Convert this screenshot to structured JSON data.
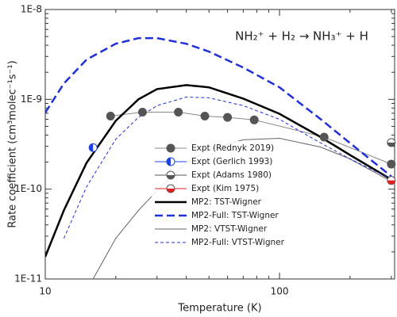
{
  "chart_data": {
    "type": "line",
    "annotation": "NH₂⁺ + H₂ → NH₃⁺ + H",
    "x_label": "Temperature (K)",
    "y_label": "Rate coefficient (cm³molec⁻¹s⁻¹)",
    "log_x": true,
    "log_y": true,
    "xlim": [
      10,
      310
    ],
    "xticks": [
      10,
      100
    ],
    "ylim": [
      1e-11,
      1e-08
    ],
    "yticks": [
      {
        "value": 1e-11,
        "label": "1E-11"
      },
      {
        "value": 1e-10,
        "label": "1E-10"
      },
      {
        "value": 1e-09,
        "label": "1E-9"
      },
      {
        "value": 1e-08,
        "label": "1E-8"
      }
    ],
    "series": [
      {
        "name": "Expt (Rednyk 2019)",
        "kind": "line-marker",
        "color": "#555555",
        "marker_fill": "full",
        "x": [
          19,
          26,
          37,
          48,
          60,
          78,
          155,
          300
        ],
        "values": [
          6.5e-10,
          7.2e-10,
          7.2e-10,
          6.5e-10,
          6.3e-10,
          5.9e-10,
          3.8e-10,
          1.9e-10
        ]
      },
      {
        "name": "Expt (Gerlich 1993)",
        "kind": "marker",
        "color": "#2040e0",
        "marker_fill": "left",
        "x": [
          16
        ],
        "values": [
          2.9e-10
        ]
      },
      {
        "name": "Expt (Adams 1980)",
        "kind": "marker",
        "color": "#555555",
        "marker_fill": "bottom",
        "x": [
          300
        ],
        "values": [
          3.3e-10
        ]
      },
      {
        "name": "Expt (Kim 1975)",
        "kind": "marker",
        "color": "#e02020",
        "marker_fill": "bottom",
        "x": [
          300
        ],
        "values": [
          1.25e-10
        ]
      },
      {
        "name": "MP2: TST-Wigner",
        "kind": "line",
        "color": "#000000",
        "width": 2.5,
        "dashed": false,
        "x": [
          10,
          12,
          15,
          20,
          25,
          30,
          40,
          50,
          70,
          100,
          150,
          200,
          300
        ],
        "values": [
          1.77e-11,
          5.8e-11,
          1.96e-10,
          5.77e-10,
          1e-09,
          1.3e-09,
          1.44e-09,
          1.36e-09,
          1.02e-09,
          6.9e-10,
          3.8e-10,
          2.4e-10,
          1.28e-10
        ]
      },
      {
        "name": "MP2-Full: TST-Wigner",
        "kind": "line",
        "color": "#2030d8",
        "width": 2.5,
        "dashed": true,
        "x": [
          10,
          12,
          15,
          20,
          25,
          30,
          40,
          50,
          70,
          100,
          150,
          200,
          300
        ],
        "values": [
          7.1e-10,
          1.5e-09,
          2.77e-09,
          4.16e-09,
          4.8e-09,
          4.8e-09,
          4.16e-09,
          3.4e-09,
          2.26e-09,
          1.36e-09,
          6e-10,
          3.26e-10,
          1.39e-10
        ]
      },
      {
        "name": "MP2: VTST-Wigner",
        "kind": "line",
        "color": "#666666",
        "width": 1,
        "dashed": false,
        "x": [
          16,
          20,
          25,
          30,
          40,
          50,
          70,
          100,
          150,
          200,
          300
        ],
        "values": [
          1e-11,
          2.83e-11,
          5.8e-11,
          9.6e-11,
          1.96e-10,
          2.77e-10,
          3.54e-10,
          3.68e-10,
          2.94e-10,
          2.17e-10,
          1.22e-10
        ]
      },
      {
        "name": "MP2-Full: VTST-Wigner",
        "kind": "line",
        "color": "#2030d8",
        "width": 1,
        "dashed": true,
        "x": [
          12,
          15,
          20,
          25,
          30,
          40,
          50,
          70,
          100,
          150,
          200,
          300
        ],
        "values": [
          2.83e-11,
          1.06e-10,
          3.6e-10,
          6.3e-10,
          8.5e-10,
          1.06e-09,
          1.04e-09,
          8.5e-10,
          6e-10,
          3.26e-10,
          2.17e-10,
          1.3e-10
        ]
      }
    ]
  }
}
